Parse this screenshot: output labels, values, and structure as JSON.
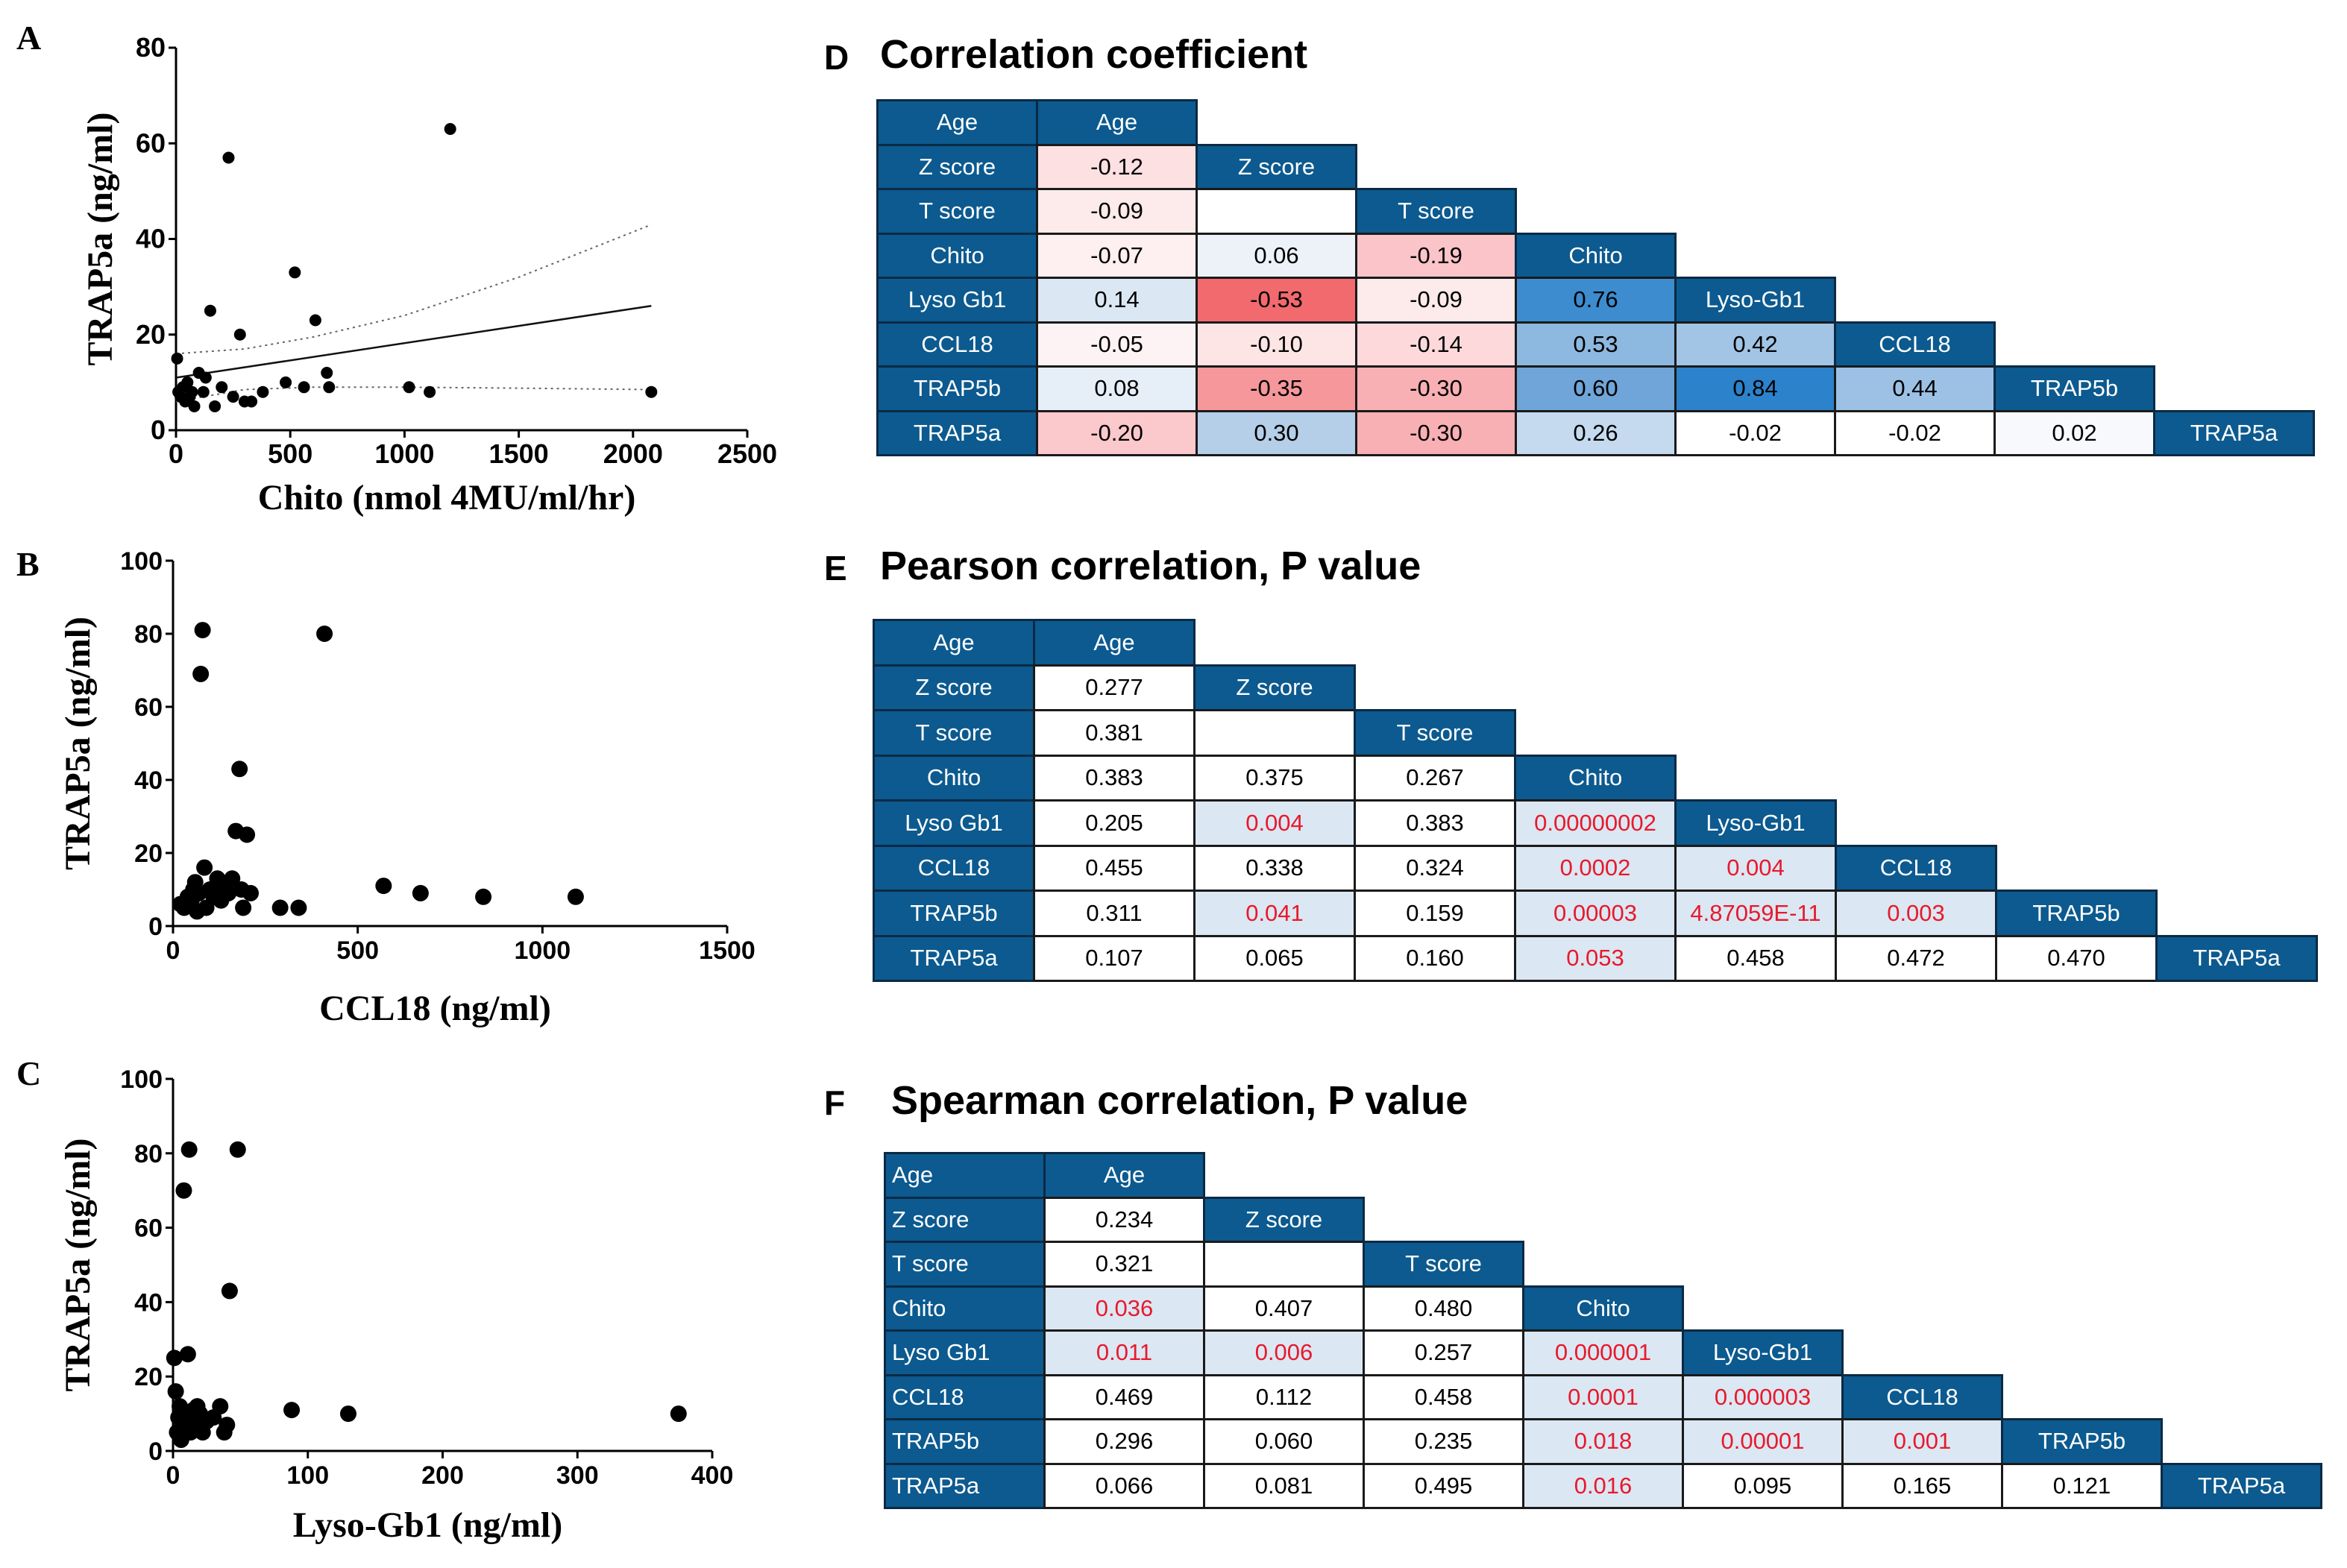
{
  "panels": {
    "A": "A",
    "B": "B",
    "C": "C",
    "D": "D",
    "E": "E",
    "F": "F"
  },
  "titles": {
    "D": "Correlation coefficient",
    "E": "Pearson correlation, P value",
    "F": "Spearman correlation, P value"
  },
  "chart_data": [
    {
      "type": "scatter",
      "panel": "A",
      "xlabel": "Chito (nmol 4MU/ml/hr)",
      "ylabel": "TRAP5a (ng/ml)",
      "xlim": [
        0,
        2500
      ],
      "ylim": [
        0,
        80
      ],
      "xticks": [
        0,
        500,
        1000,
        1500,
        2000,
        2500
      ],
      "yticks": [
        0,
        20,
        40,
        60,
        80
      ],
      "points": [
        [
          5,
          15
        ],
        [
          10,
          8
        ],
        [
          20,
          7
        ],
        [
          30,
          9
        ],
        [
          40,
          6
        ],
        [
          50,
          10
        ],
        [
          60,
          7
        ],
        [
          70,
          8
        ],
        [
          80,
          5
        ],
        [
          100,
          12
        ],
        [
          120,
          8
        ],
        [
          130,
          11
        ],
        [
          150,
          25
        ],
        [
          170,
          5
        ],
        [
          200,
          9
        ],
        [
          230,
          57
        ],
        [
          250,
          7
        ],
        [
          280,
          20
        ],
        [
          300,
          6
        ],
        [
          330,
          6
        ],
        [
          380,
          8
        ],
        [
          480,
          10
        ],
        [
          520,
          33
        ],
        [
          560,
          9
        ],
        [
          610,
          23
        ],
        [
          660,
          12
        ],
        [
          670,
          9
        ],
        [
          1020,
          9
        ],
        [
          1110,
          8
        ],
        [
          1200,
          63
        ],
        [
          2080,
          8
        ]
      ],
      "regression": {
        "x": [
          0,
          2080
        ],
        "y": [
          11,
          26
        ]
      },
      "ci_upper": {
        "x": [
          0,
          300,
          600,
          1000,
          1500,
          2080
        ],
        "y": [
          16,
          17,
          19.5,
          24,
          32,
          43
        ]
      },
      "ci_lower": {
        "x": [
          0,
          300,
          600,
          1000,
          1500,
          2080
        ],
        "y": [
          6,
          8.5,
          9,
          9,
          8.8,
          8.5
        ]
      }
    },
    {
      "type": "scatter",
      "panel": "B",
      "xlabel": "CCL18 (ng/ml)",
      "ylabel": "TRAP5a (ng/ml)",
      "xlim": [
        0,
        1500
      ],
      "ylim": [
        0,
        100
      ],
      "xticks": [
        0,
        500,
        1000,
        1500
      ],
      "yticks": [
        0,
        20,
        40,
        60,
        80,
        100
      ],
      "points": [
        [
          20,
          6
        ],
        [
          30,
          5
        ],
        [
          40,
          8
        ],
        [
          50,
          7
        ],
        [
          55,
          10
        ],
        [
          60,
          12
        ],
        [
          65,
          4
        ],
        [
          70,
          9
        ],
        [
          75,
          69
        ],
        [
          80,
          81
        ],
        [
          85,
          16
        ],
        [
          90,
          5
        ],
        [
          100,
          10
        ],
        [
          110,
          8
        ],
        [
          120,
          13
        ],
        [
          130,
          7
        ],
        [
          140,
          11
        ],
        [
          150,
          9
        ],
        [
          160,
          13
        ],
        [
          170,
          26
        ],
        [
          180,
          43
        ],
        [
          185,
          10
        ],
        [
          190,
          5
        ],
        [
          200,
          25
        ],
        [
          210,
          9
        ],
        [
          290,
          5
        ],
        [
          340,
          5
        ],
        [
          410,
          80
        ],
        [
          570,
          11
        ],
        [
          670,
          9
        ],
        [
          840,
          8
        ],
        [
          1090,
          8
        ]
      ]
    },
    {
      "type": "scatter",
      "panel": "C",
      "xlabel": "Lyso-Gb1 (ng/ml)",
      "ylabel": "TRAP5a (ng/ml)",
      "xlim": [
        0,
        400
      ],
      "ylim": [
        0,
        100
      ],
      "xticks": [
        0,
        100,
        200,
        300,
        400
      ],
      "yticks": [
        0,
        20,
        40,
        60,
        80,
        100
      ],
      "points": [
        [
          1,
          25
        ],
        [
          2,
          16
        ],
        [
          3,
          5
        ],
        [
          4,
          9
        ],
        [
          5,
          12
        ],
        [
          6,
          3
        ],
        [
          7,
          8
        ],
        [
          8,
          70
        ],
        [
          9,
          10
        ],
        [
          10,
          6
        ],
        [
          11,
          26
        ],
        [
          12,
          81
        ],
        [
          13,
          5
        ],
        [
          14,
          9
        ],
        [
          15,
          11
        ],
        [
          16,
          7
        ],
        [
          18,
          12
        ],
        [
          20,
          10
        ],
        [
          22,
          5
        ],
        [
          25,
          8
        ],
        [
          30,
          9
        ],
        [
          35,
          12
        ],
        [
          38,
          5
        ],
        [
          40,
          7
        ],
        [
          42,
          43
        ],
        [
          48,
          81
        ],
        [
          88,
          11
        ],
        [
          130,
          10
        ],
        [
          375,
          10
        ]
      ]
    },
    {
      "type": "table",
      "panel": "D",
      "title": "Correlation coefficient",
      "row_labels": [
        "Age",
        "Z score",
        "T score",
        "Chito",
        "Lyso Gb1",
        "CCL18",
        "TRAP5b",
        "TRAP5a"
      ],
      "col_labels": [
        "Age",
        "Z score",
        "T score",
        "Chito",
        "Lyso-Gb1",
        "CCL18",
        "TRAP5b",
        "TRAP5a"
      ],
      "values": [
        [],
        [
          "-0.12"
        ],
        [
          "-0.09",
          ""
        ],
        [
          "-0.07",
          "0.06",
          "-0.19"
        ],
        [
          "0.14",
          "-0.53",
          "-0.09",
          "0.76"
        ],
        [
          "-0.05",
          "-0.10",
          "-0.14",
          "0.53",
          "0.42"
        ],
        [
          "0.08",
          "-0.35",
          "-0.30",
          "0.60",
          "0.84",
          "0.44"
        ],
        [
          "-0.20",
          "0.30",
          "-0.30",
          "0.26",
          "-0.02",
          "-0.02",
          "0.02"
        ]
      ],
      "colors": [
        [],
        [
          "#fde0e2"
        ],
        [
          "#fdeaea",
          "#ffffff"
        ],
        [
          "#feeff0",
          "#edf2f9",
          "#fbc4c9"
        ],
        [
          "#dbe8f4",
          "#f26a6e",
          "#fdeaea",
          "#3d8ccf"
        ],
        [
          "#fef3f4",
          "#fde5e6",
          "#fdd9dc",
          "#8db8e0",
          "#a2c5e6"
        ],
        [
          "#e6eff8",
          "#f5979b",
          "#f8b0b4",
          "#6fa5d8",
          "#2c82cb",
          "#9cc1e5"
        ],
        [
          "#fbc8cc",
          "#b5cfe9",
          "#f8b0b4",
          "#c5daee",
          "#ffffff",
          "#ffffff",
          "#f7f9fc"
        ]
      ]
    },
    {
      "type": "table",
      "panel": "E",
      "title": "Pearson correlation, P value",
      "row_labels": [
        "Age",
        "Z score",
        "T score",
        "Chito",
        "Lyso Gb1",
        "CCL18",
        "TRAP5b",
        "TRAP5a"
      ],
      "col_labels": [
        "Age",
        "Z score",
        "T score",
        "Chito",
        "Lyso-Gb1",
        "CCL18",
        "TRAP5b",
        "TRAP5a"
      ],
      "values": [
        [],
        [
          "0.277"
        ],
        [
          "0.381",
          ""
        ],
        [
          "0.383",
          "0.375",
          "0.267"
        ],
        [
          "0.205",
          "0.004",
          "0.383",
          "0.00000002"
        ],
        [
          "0.455",
          "0.338",
          "0.324",
          "0.0002",
          "0.004"
        ],
        [
          "0.311",
          "0.041",
          "0.159",
          "0.00003",
          "4.87059E-11",
          "0.003"
        ],
        [
          "0.107",
          "0.065",
          "0.160",
          "0.053",
          "0.458",
          "0.472",
          "0.470"
        ]
      ],
      "highlight": [
        [],
        [
          0
        ],
        [
          0,
          0
        ],
        [
          0,
          0,
          0
        ],
        [
          0,
          1,
          0,
          1
        ],
        [
          0,
          0,
          0,
          1,
          1
        ],
        [
          0,
          1,
          0,
          1,
          1,
          1
        ],
        [
          0,
          0,
          0,
          1,
          0,
          0,
          0
        ]
      ]
    },
    {
      "type": "table",
      "panel": "F",
      "title": "Spearman correlation, P value",
      "row_labels": [
        "Age",
        "Z score",
        "T score",
        "Chito",
        "Lyso Gb1",
        "CCL18",
        "TRAP5b",
        "TRAP5a"
      ],
      "col_labels": [
        "Age",
        "Z score",
        "T score",
        "Chito",
        "Lyso-Gb1",
        "CCL18",
        "TRAP5b",
        "TRAP5a"
      ],
      "values": [
        [],
        [
          "0.234"
        ],
        [
          "0.321",
          ""
        ],
        [
          "0.036",
          "0.407",
          "0.480"
        ],
        [
          "0.011",
          "0.006",
          "0.257",
          "0.000001"
        ],
        [
          "0.469",
          "0.112",
          "0.458",
          "0.0001",
          "0.000003"
        ],
        [
          "0.296",
          "0.060",
          "0.235",
          "0.018",
          "0.00001",
          "0.001"
        ],
        [
          "0.066",
          "0.081",
          "0.495",
          "0.016",
          "0.095",
          "0.165",
          "0.121"
        ]
      ],
      "highlight": [
        [],
        [
          0
        ],
        [
          0,
          0
        ],
        [
          1,
          0,
          0
        ],
        [
          1,
          1,
          0,
          1
        ],
        [
          0,
          0,
          0,
          1,
          1
        ],
        [
          0,
          0,
          0,
          1,
          1,
          1
        ],
        [
          0,
          0,
          0,
          1,
          0,
          0,
          0
        ]
      ]
    }
  ]
}
